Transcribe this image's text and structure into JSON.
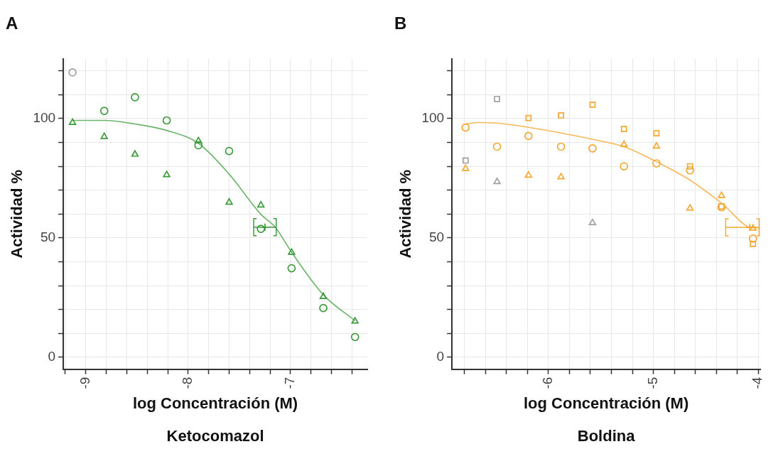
{
  "chart_data": [
    {
      "type": "scatter",
      "title": "A",
      "xlabel": "log Concentración (M)",
      "ylabel": "Actividad %",
      "annotations": [
        "Ketocomazol"
      ],
      "grid": true,
      "xlim": [
        -9.22,
        -6.25
      ],
      "ylim": [
        -5,
        125
      ],
      "xticks": [
        {
          "value": -9.2,
          "label": null
        },
        -9,
        {
          "value": -8.8,
          "label": null
        },
        {
          "value": -8.6,
          "label": null
        },
        {
          "value": -8.4,
          "label": null
        },
        {
          "value": -8.2,
          "label": null
        },
        -8,
        {
          "value": -7.8,
          "label": null
        },
        {
          "value": -7.6,
          "label": null
        },
        {
          "value": -7.4,
          "label": null
        },
        {
          "value": -7.2,
          "label": null
        },
        -7,
        {
          "value": -6.8,
          "label": null
        },
        {
          "value": -6.6,
          "label": null
        },
        {
          "value": -6.4,
          "label": null
        }
      ],
      "yticks": [
        0,
        {
          "value": 10,
          "label": null
        },
        {
          "value": 20,
          "label": null
        },
        {
          "value": 30,
          "label": null
        },
        {
          "value": 40,
          "label": null
        },
        50,
        {
          "value": 60,
          "label": null
        },
        {
          "value": 70,
          "label": null
        },
        {
          "value": 80,
          "label": null
        },
        {
          "value": 90,
          "label": null
        },
        100,
        {
          "value": 110,
          "label": null
        },
        {
          "value": 120,
          "label": null
        }
      ],
      "series": [
        {
          "marker": "circle",
          "color": "#3d9b3d",
          "x": [
            -8.82,
            -8.52,
            -8.21,
            -7.9,
            -7.6,
            -7.29,
            -6.99,
            -6.68,
            -6.37
          ],
          "values": [
            103.2,
            108.9,
            99.2,
            88.8,
            86.4,
            53.8,
            37.3,
            20.6,
            8.5
          ]
        },
        {
          "marker": "triangle",
          "color": "#3d9b3d",
          "x": [
            -9.13,
            -8.82,
            -8.52,
            -8.21,
            -7.9,
            -7.6,
            -7.29,
            -6.99,
            -6.68,
            -6.37
          ],
          "values": [
            98.3,
            92.4,
            85,
            76.4,
            90.6,
            64.9,
            63.7,
            43.9,
            25.4,
            15.1
          ]
        },
        {
          "marker": "circle",
          "color": "#a0a0a0",
          "x": [
            -9.13
          ],
          "values": [
            119.3
          ]
        },
        {
          "type": "line",
          "marker": "none",
          "color": "#6bb56b",
          "x": [
            -9.13,
            -8.82,
            -8.52,
            -8.21,
            -7.9,
            -7.6,
            -7.29,
            -7.15,
            -6.99,
            -6.68,
            -6.37
          ],
          "values": [
            99.2,
            99.2,
            97.7,
            95,
            89.6,
            76.7,
            59.9,
            54.5,
            44,
            26.2,
            15.3
          ]
        },
        {
          "type": "scatter",
          "marker": "cross",
          "color": "#3d9b3d",
          "x": [
            -7.25
          ],
          "values": [
            54.5
          ],
          "xerrors": [
            [
              -7.36,
              -7.14
            ]
          ]
        }
      ]
    },
    {
      "type": "scatter",
      "title": "B",
      "xlabel": "log Concentración (M)",
      "ylabel": "Actividad %",
      "annotations": [
        "Boldina"
      ],
      "grid": true,
      "xlim": [
        -6.92,
        -3.98
      ],
      "ylim": [
        -5,
        125
      ],
      "xticks": [
        {
          "value": -6.8,
          "label": null
        },
        {
          "value": -6.6,
          "label": null
        },
        {
          "value": -6.4,
          "label": null
        },
        {
          "value": -6.2,
          "label": null
        },
        -6,
        {
          "value": -5.8,
          "label": null
        },
        {
          "value": -5.6,
          "label": null
        },
        {
          "value": -5.4,
          "label": null
        },
        {
          "value": -5.2,
          "label": null
        },
        -5,
        {
          "value": -4.8,
          "label": null
        },
        {
          "value": -4.6,
          "label": null
        },
        {
          "value": -4.4,
          "label": null
        },
        {
          "value": -4.2,
          "label": null
        },
        -4
      ],
      "yticks": [
        0,
        {
          "value": 10,
          "label": null
        },
        {
          "value": 20,
          "label": null
        },
        {
          "value": 30,
          "label": null
        },
        {
          "value": 40,
          "label": null
        },
        50,
        {
          "value": 60,
          "label": null
        },
        {
          "value": 70,
          "label": null
        },
        {
          "value": 80,
          "label": null
        },
        {
          "value": 90,
          "label": null
        },
        100,
        {
          "value": 110,
          "label": null
        },
        {
          "value": 120,
          "label": null
        }
      ],
      "series": [
        {
          "marker": "circle",
          "color": "#f5a833",
          "x": [
            -6.79,
            -6.49,
            -6.19,
            -5.88,
            -5.58,
            -5.28,
            -4.97,
            -4.65,
            -4.35,
            -4.05
          ],
          "values": [
            96.2,
            88.2,
            92.7,
            88.2,
            87.5,
            80,
            81.2,
            78.3,
            62.9,
            49.7
          ]
        },
        {
          "marker": "square",
          "color": "#f5a833",
          "x": [
            -6.19,
            -5.88,
            -5.58,
            -5.28,
            -4.97,
            -4.65,
            -4.35,
            -4.05
          ],
          "values": [
            100.2,
            101.3,
            105.8,
            95.6,
            93.8,
            80,
            63.2,
            47.5
          ]
        },
        {
          "marker": "triangle",
          "color": "#f5a833",
          "x": [
            -6.79,
            -6.19,
            -5.88,
            -5.28,
            -4.97,
            -4.65,
            -4.35,
            -4.05
          ],
          "values": [
            79,
            76.2,
            75.5,
            89.1,
            88.4,
            62.4,
            67.7,
            54
          ]
        },
        {
          "marker": "square",
          "color": "#a0a0a0",
          "x": [
            -6.79,
            -6.49
          ],
          "values": [
            82.4,
            108.2
          ]
        },
        {
          "marker": "triangle",
          "color": "#a0a0a0",
          "x": [
            -6.49,
            -5.58
          ],
          "values": [
            73.5,
            56.3
          ]
        },
        {
          "type": "line",
          "marker": "none",
          "color": "#f7b85a",
          "x": [
            -6.79,
            -6.65,
            -6.49,
            -6.19,
            -5.88,
            -5.58,
            -5.28,
            -4.97,
            -4.65,
            -4.35,
            -4.05,
            -3.99
          ],
          "values": [
            97.8,
            98.3,
            98.1,
            96.3,
            93.9,
            91.3,
            88.2,
            81.9,
            74.2,
            64.6,
            54.2,
            54.2
          ]
        },
        {
          "type": "scatter",
          "marker": "cross",
          "color": "#f5a833",
          "x": [
            -4.08
          ],
          "values": [
            54.4
          ],
          "xerrors": [
            [
              -4.31,
              -3.99
            ]
          ]
        }
      ]
    }
  ]
}
